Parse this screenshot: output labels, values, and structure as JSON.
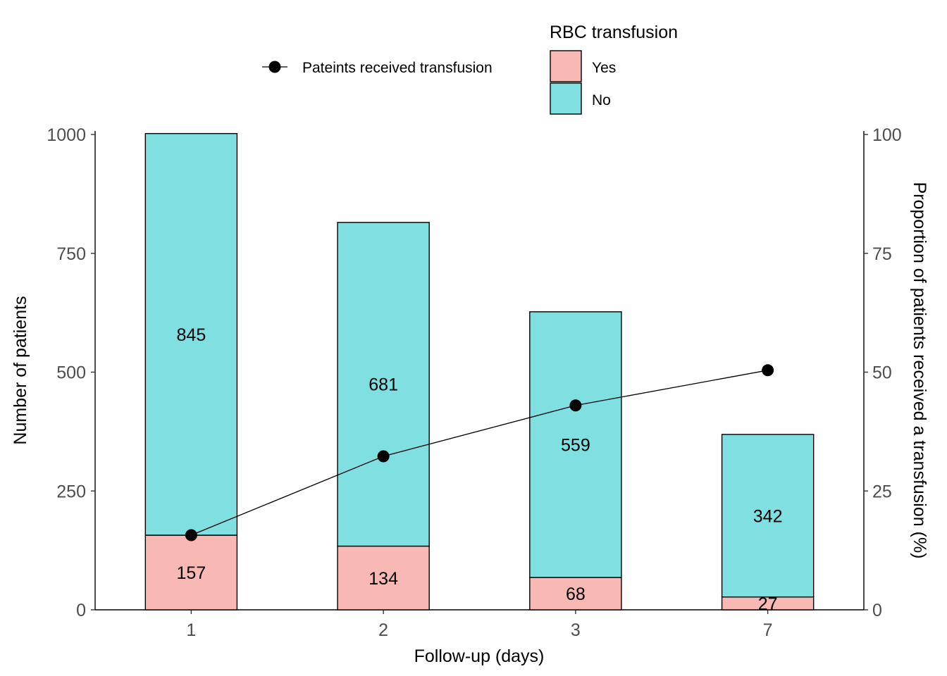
{
  "chart_data": {
    "type": "bar",
    "stacked": true,
    "categories": [
      "1",
      "2",
      "3",
      "7"
    ],
    "xlabel": "Follow-up (days)",
    "ylabel": "Number of patients",
    "ylabel_right": "Proportion of patients received a transfusion (%)",
    "ylim": [
      0,
      1000
    ],
    "ylim_right": [
      0,
      100
    ],
    "y_ticks": [
      "0",
      "250",
      "500",
      "750",
      "1000"
    ],
    "y_ticks_right": [
      "0",
      "25",
      "50",
      "75",
      "100"
    ],
    "grid": false,
    "legend_placement": "top-center",
    "fill_legend_title": "RBC transfusion",
    "series": [
      {
        "name": "Yes",
        "color": "#F8B8B3",
        "values": [
          157,
          134,
          68,
          27
        ]
      },
      {
        "name": "No",
        "color": "#80DFE1",
        "values": [
          845,
          681,
          559,
          342
        ]
      }
    ],
    "line_series": {
      "name": "Pateints received transfusion",
      "axis": "right",
      "color": "#000000",
      "values": [
        15.7,
        32.3,
        43.0,
        50.4
      ]
    }
  }
}
